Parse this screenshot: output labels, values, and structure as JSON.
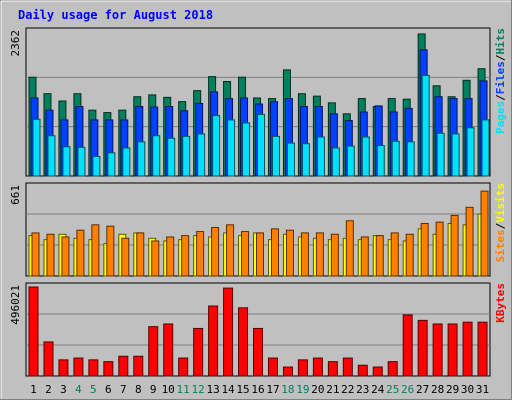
{
  "title": "Daily usage for August 2018",
  "colors": {
    "background": "#c0c0c0",
    "plot_background": "#c0c0c0",
    "title": "#0000ff",
    "hits": "#00805c",
    "files": "#0040ff",
    "pages": "#00e0ff",
    "visits": "#ffff00",
    "sites": "#ff8000",
    "kbytes": "#ff0000",
    "weekend_label": "#00805c",
    "weekday_label": "#000000"
  },
  "chart_data": [
    {
      "type": "bar",
      "panel": "top",
      "ymax_label": "2362",
      "ylim": [
        0,
        2362
      ],
      "legend": [
        "Pages",
        "Files",
        "Hits"
      ],
      "categories": [
        "1",
        "2",
        "3",
        "4",
        "5",
        "6",
        "7",
        "8",
        "9",
        "10",
        "11",
        "12",
        "13",
        "14",
        "15",
        "16",
        "17",
        "18",
        "19",
        "20",
        "21",
        "22",
        "23",
        "24",
        "25",
        "26",
        "27",
        "28",
        "29",
        "30",
        "31"
      ],
      "weekend": [
        "4",
        "5",
        "11",
        "12",
        "18",
        "19",
        "25",
        "26"
      ],
      "series": [
        {
          "name": "Hits",
          "values": [
            1620,
            1350,
            1230,
            1350,
            1080,
            1040,
            1080,
            1300,
            1330,
            1290,
            1220,
            1400,
            1630,
            1550,
            1620,
            1280,
            1270,
            1740,
            1350,
            1310,
            1200,
            1020,
            1270,
            1140,
            1270,
            1260,
            2330,
            1480,
            1300,
            1570,
            1760
          ]
        },
        {
          "name": "Files",
          "values": [
            1280,
            1080,
            920,
            1140,
            920,
            920,
            920,
            1140,
            1130,
            1140,
            1070,
            1190,
            1380,
            1270,
            1280,
            1180,
            1220,
            1270,
            1140,
            1140,
            1020,
            910,
            1050,
            1150,
            1050,
            1110,
            2070,
            1300,
            1270,
            1270,
            1560
          ]
        },
        {
          "name": "Pages",
          "values": [
            930,
            660,
            480,
            470,
            320,
            380,
            460,
            560,
            660,
            620,
            650,
            690,
            990,
            920,
            870,
            1010,
            650,
            540,
            530,
            640,
            460,
            490,
            640,
            500,
            570,
            560,
            1650,
            700,
            690,
            790,
            920
          ]
        }
      ]
    },
    {
      "type": "bar",
      "panel": "middle",
      "ymax_label": "661",
      "ylim": [
        0,
        661
      ],
      "legend": [
        "Sites",
        "Visits"
      ],
      "categories": [
        "1",
        "2",
        "3",
        "4",
        "5",
        "6",
        "7",
        "8",
        "9",
        "10",
        "11",
        "12",
        "13",
        "14",
        "15",
        "16",
        "17",
        "18",
        "19",
        "20",
        "21",
        "22",
        "23",
        "24",
        "25",
        "26",
        "27",
        "28",
        "29",
        "30",
        "31"
      ],
      "series": [
        {
          "name": "Visits",
          "values": [
            300,
            270,
            310,
            280,
            270,
            240,
            310,
            320,
            280,
            260,
            270,
            300,
            290,
            320,
            300,
            320,
            270,
            310,
            290,
            280,
            270,
            280,
            270,
            300,
            270,
            260,
            350,
            310,
            390,
            380,
            460
          ]
        },
        {
          "name": "Sites",
          "values": [
            320,
            310,
            290,
            340,
            380,
            370,
            280,
            320,
            260,
            290,
            300,
            330,
            360,
            380,
            330,
            320,
            350,
            340,
            320,
            320,
            310,
            410,
            290,
            300,
            320,
            310,
            390,
            400,
            450,
            510,
            630
          ]
        }
      ]
    },
    {
      "type": "bar",
      "panel": "bottom",
      "ymax_label": "496021",
      "ylim": [
        0,
        496021
      ],
      "legend": [
        "KBytes"
      ],
      "categories": [
        "1",
        "2",
        "3",
        "4",
        "5",
        "6",
        "7",
        "8",
        "9",
        "10",
        "11",
        "12",
        "13",
        "14",
        "15",
        "16",
        "17",
        "18",
        "19",
        "20",
        "21",
        "22",
        "23",
        "24",
        "25",
        "26",
        "27",
        "28",
        "29",
        "30",
        "31"
      ],
      "series": [
        {
          "name": "KBytes",
          "values": [
            496021,
            190000,
            90000,
            100000,
            90000,
            80000,
            110000,
            110000,
            275000,
            290000,
            100000,
            265000,
            390000,
            490000,
            380000,
            265000,
            100000,
            50000,
            90000,
            100000,
            80000,
            100000,
            60000,
            50000,
            80000,
            340000,
            310000,
            290000,
            290000,
            300000,
            300000
          ]
        }
      ]
    }
  ]
}
